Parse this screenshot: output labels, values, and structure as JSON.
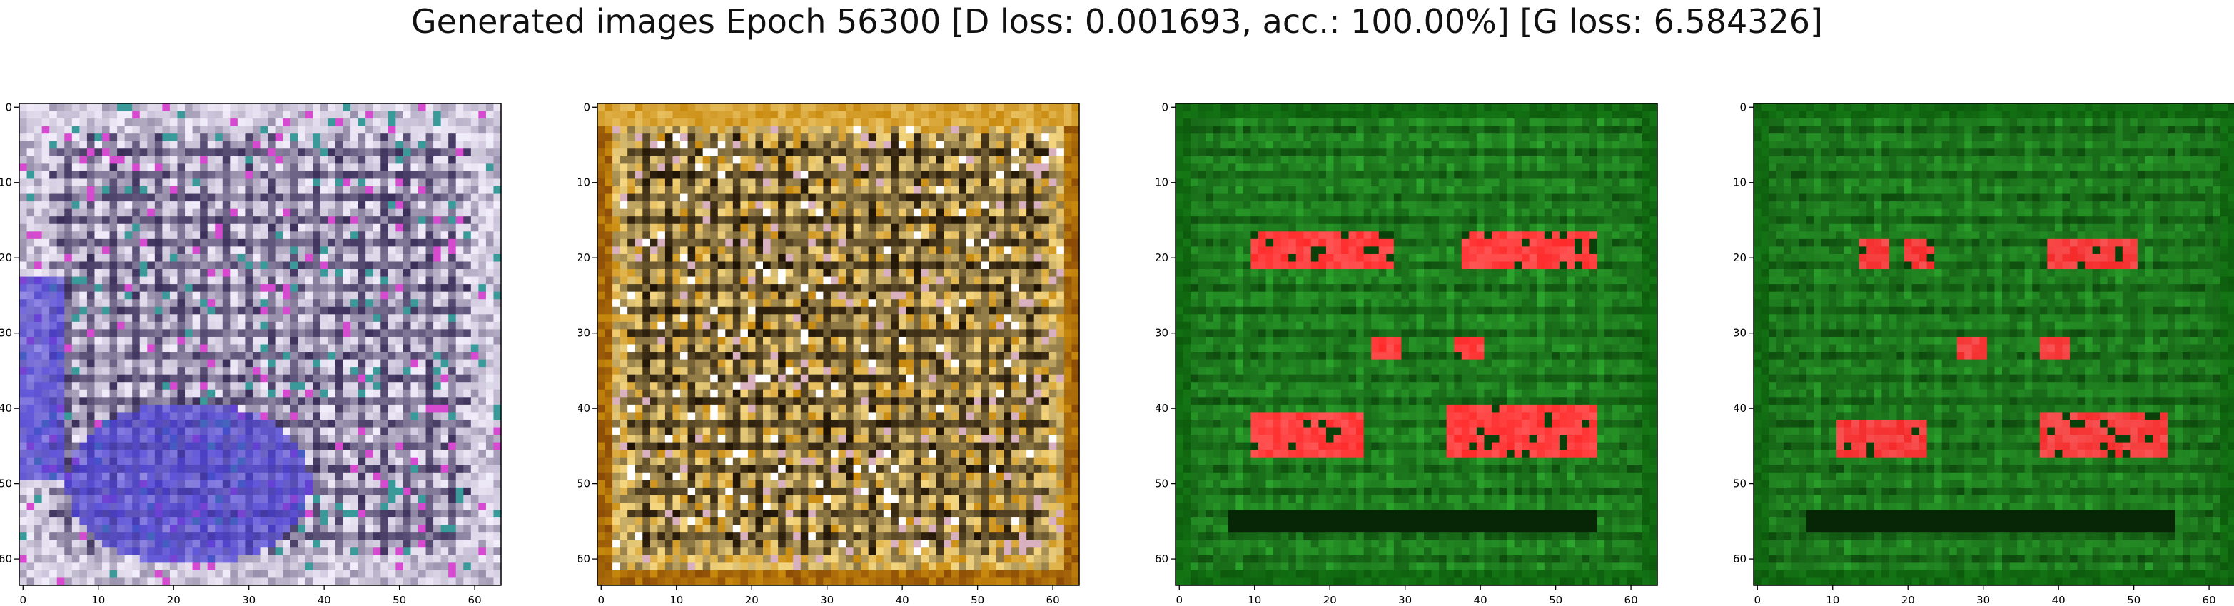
{
  "title": "Generated images Epoch 56300 [D loss: 0.001693, acc.: 100.00%] [G loss: 6.584326]",
  "chart_data": [
    {
      "type": "heatmap",
      "xlim": [
        0,
        63
      ],
      "ylim": [
        63,
        0
      ],
      "x_ticks": [
        0,
        10,
        20,
        30,
        40,
        50,
        60
      ],
      "y_ticks": [
        0,
        10,
        20,
        30,
        40,
        50,
        60
      ],
      "style": "lavender-grid",
      "colors": {
        "base": "#c9c1d8",
        "light": "#f3eefb",
        "dark": "#3b2f5a",
        "accent": "#4a3fd6",
        "highlight": "#d64ad0",
        "teal": "#3a9a9a"
      }
    },
    {
      "type": "heatmap",
      "xlim": [
        0,
        63
      ],
      "ylim": [
        63,
        0
      ],
      "x_ticks": [
        0,
        10,
        20,
        30,
        40,
        50,
        60
      ],
      "y_ticks": [
        0,
        10,
        20,
        30,
        40,
        50,
        60
      ],
      "style": "amber-grid",
      "colors": {
        "base": "#c98a0e",
        "light": "#f5d680",
        "dark": "#1e1204",
        "accent": "#8a4a06",
        "highlight": "#ffffff",
        "teal": "#d9b0c0"
      }
    },
    {
      "type": "heatmap",
      "xlim": [
        0,
        63
      ],
      "ylim": [
        63,
        0
      ],
      "x_ticks": [
        0,
        10,
        20,
        30,
        40,
        50,
        60
      ],
      "y_ticks": [
        0,
        10,
        20,
        30,
        40,
        50,
        60
      ],
      "style": "green-field",
      "blobs": [
        {
          "x0": 10,
          "x1": 28,
          "y0": 17,
          "y1": 21
        },
        {
          "x0": 38,
          "x1": 55,
          "y0": 17,
          "y1": 21
        },
        {
          "x0": 26,
          "x1": 29,
          "y0": 31,
          "y1": 33
        },
        {
          "x0": 37,
          "x1": 40,
          "y0": 31,
          "y1": 33
        },
        {
          "x0": 10,
          "x1": 24,
          "y0": 41,
          "y1": 46
        },
        {
          "x0": 36,
          "x1": 55,
          "y0": 40,
          "y1": 46
        }
      ],
      "colors": {
        "base": "#1a8c1a",
        "light": "#33b833",
        "dark": "#0a400a",
        "accent": "#ff2b2b",
        "highlight": "#ffd0d0",
        "teal": "#0d5a0d"
      }
    },
    {
      "type": "heatmap",
      "xlim": [
        0,
        63
      ],
      "ylim": [
        63,
        0
      ],
      "x_ticks": [
        0,
        10,
        20,
        30,
        40,
        50,
        60
      ],
      "y_ticks": [
        0,
        10,
        20,
        30,
        40,
        50,
        60
      ],
      "style": "green-field",
      "blobs": [
        {
          "x0": 14,
          "x1": 17,
          "y0": 18,
          "y1": 21
        },
        {
          "x0": 20,
          "x1": 23,
          "y0": 18,
          "y1": 21
        },
        {
          "x0": 39,
          "x1": 50,
          "y0": 18,
          "y1": 21
        },
        {
          "x0": 27,
          "x1": 30,
          "y0": 31,
          "y1": 33
        },
        {
          "x0": 38,
          "x1": 41,
          "y0": 31,
          "y1": 33
        },
        {
          "x0": 11,
          "x1": 22,
          "y0": 42,
          "y1": 46
        },
        {
          "x0": 38,
          "x1": 54,
          "y0": 41,
          "y1": 46
        }
      ],
      "colors": {
        "base": "#1a8a1a",
        "light": "#30b030",
        "dark": "#0a3f0a",
        "accent": "#f52a2a",
        "highlight": "#ffd0d0",
        "teal": "#0d5a0d"
      }
    }
  ]
}
